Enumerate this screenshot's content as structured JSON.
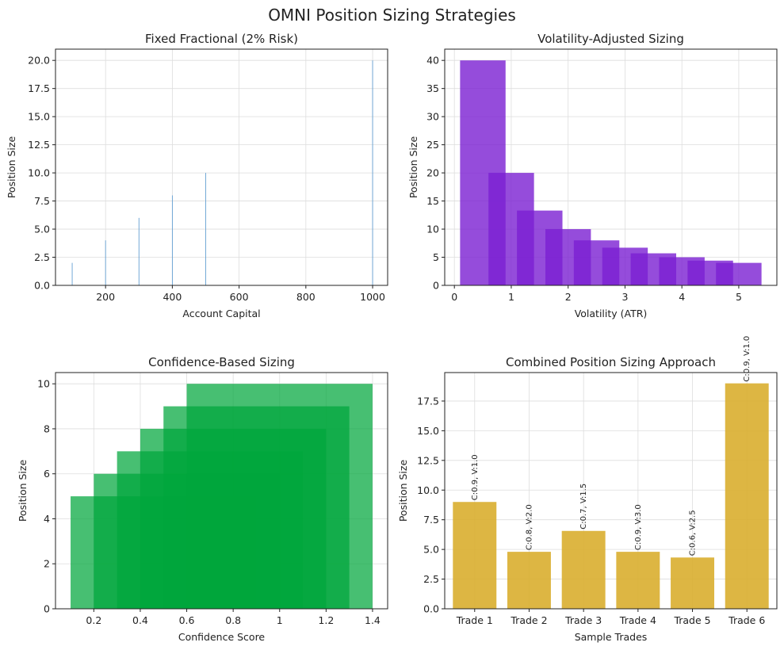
{
  "figure_title": "OMNI Position Sizing Strategies",
  "chart_data": [
    {
      "id": "fixed",
      "type": "bar",
      "title": "Fixed Fractional (2% Risk)",
      "xlabel": "Account Capital",
      "ylabel": "Position Size",
      "xlim": [
        50,
        1045
      ],
      "ylim": [
        0,
        21
      ],
      "xticks": [
        200,
        400,
        600,
        800,
        1000
      ],
      "yticks": [
        0.0,
        2.5,
        5.0,
        7.5,
        10.0,
        12.5,
        15.0,
        17.5,
        20.0
      ],
      "ytick_format": "1",
      "grid": true,
      "bar_width": 2,
      "color": "#5b9ad0",
      "x": [
        100,
        200,
        300,
        400,
        500,
        1000
      ],
      "values": [
        2,
        4,
        6,
        8,
        10,
        20
      ]
    },
    {
      "id": "volatility",
      "type": "bar",
      "title": "Volatility-Adjusted Sizing",
      "xlabel": "Volatility (ATR)",
      "ylabel": "Position Size",
      "xlim": [
        -0.17,
        5.67
      ],
      "ylim": [
        0,
        42
      ],
      "xticks": [
        0,
        1,
        2,
        3,
        4,
        5
      ],
      "yticks": [
        0,
        5,
        10,
        15,
        20,
        25,
        30,
        35,
        40
      ],
      "ytick_format": "0",
      "grid": true,
      "bar_width": 0.8,
      "color": "#7a1fd2",
      "opacity": 0.8,
      "x": [
        0.5,
        1.0,
        1.5,
        2.0,
        2.5,
        3.0,
        3.5,
        4.0,
        4.5,
        5.0
      ],
      "values": [
        40.0,
        20.0,
        13.3,
        10.0,
        8.0,
        6.7,
        5.7,
        5.0,
        4.4,
        4.0
      ]
    },
    {
      "id": "confidence",
      "type": "bar",
      "title": "Confidence-Based Sizing",
      "xlabel": "Confidence Score",
      "ylabel": "Position Size",
      "xlim": [
        0.035,
        1.465
      ],
      "ylim": [
        0,
        10.5
      ],
      "xticks": [
        0.2,
        0.4,
        0.6,
        0.8,
        1.0,
        1.2,
        1.4
      ],
      "yticks": [
        0,
        2,
        4,
        6,
        8,
        10
      ],
      "ytick_format": "0",
      "grid": true,
      "bar_width": 0.8,
      "color": "#00a63c",
      "opacity": 0.72,
      "x": [
        0.5,
        0.6,
        0.7,
        0.8,
        0.9,
        1.0
      ],
      "values": [
        5.0,
        6.0,
        7.0,
        8.0,
        9.0,
        10.0
      ]
    },
    {
      "id": "combined",
      "type": "bar",
      "title": "Combined Position Sizing Approach",
      "xlabel": "Sample Trades",
      "ylabel": "Position Size",
      "ylim": [
        0,
        19.9
      ],
      "yticks": [
        0.0,
        2.5,
        5.0,
        7.5,
        10.0,
        12.5,
        15.0,
        17.5
      ],
      "ytick_format": "1",
      "grid": true,
      "color": "#d9ae2f",
      "opacity": 0.9,
      "categories": [
        "Trade 1",
        "Trade 2",
        "Trade 3",
        "Trade 4",
        "Trade 5",
        "Trade 6"
      ],
      "values": [
        9.0,
        4.8,
        6.56,
        4.8,
        4.32,
        18.99
      ],
      "annotations": [
        "C:0.9, V:1.0",
        "C:0.8, V:2.0",
        "C:0.7, V:1.5",
        "C:0.9, V:3.0",
        "C:0.6, V:2.5",
        "C:0.9, V:1.0"
      ]
    }
  ]
}
